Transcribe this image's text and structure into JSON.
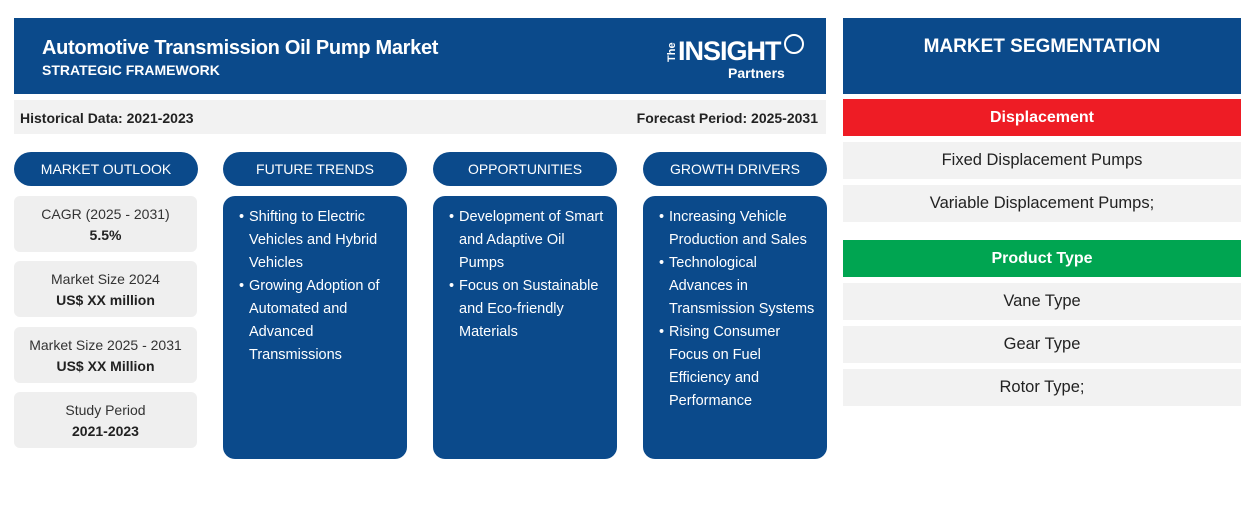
{
  "header": {
    "title": "Automotive Transmission Oil Pump Market",
    "subtitle": "STRATEGIC FRAMEWORK",
    "logo": {
      "the": "The",
      "insight": "INSIGHT",
      "partners": "Partners"
    }
  },
  "info": {
    "historical": "Historical Data: 2021-2023",
    "forecast": "Forecast Period: 2025-2031"
  },
  "columns": {
    "outlook": "MARKET OUTLOOK",
    "trends": "FUTURE TRENDS",
    "opportunities": "OPPORTUNITIES",
    "drivers": "GROWTH DRIVERS"
  },
  "stats": [
    {
      "label": "CAGR (2025 - 2031)",
      "value": "5.5%"
    },
    {
      "label": "Market Size 2024",
      "value": "US$ XX million"
    },
    {
      "label": "Market Size 2025 - 2031",
      "value": "US$ XX Million"
    },
    {
      "label": "Study Period",
      "value": "2021-2023"
    }
  ],
  "trends": [
    "Shifting to Electric Vehicles and Hybrid Vehicles",
    "Growing Adoption of Automated and Advanced Transmissions"
  ],
  "opportunities": [
    "Development of Smart and Adaptive Oil Pumps",
    "Focus on Sustainable and Eco-friendly Materials"
  ],
  "drivers": [
    "Increasing Vehicle Production and Sales",
    "Technological Advances in Transmission Systems",
    "Rising Consumer Focus on Fuel Efficiency and Performance"
  ],
  "segmentation": {
    "title": "MARKET SEGMENTATION",
    "categories": [
      {
        "name": "Displacement",
        "color": "#ee1c25",
        "items": [
          "Fixed Displacement Pumps",
          "Variable Displacement Pumps;"
        ]
      },
      {
        "name": "Product Type",
        "color": "#00a551",
        "items": [
          "Vane Type",
          "Gear Type",
          "Rotor Type;"
        ]
      }
    ]
  },
  "colors": {
    "primary": "#0b4a8b",
    "panel": "#f2f2f2"
  }
}
